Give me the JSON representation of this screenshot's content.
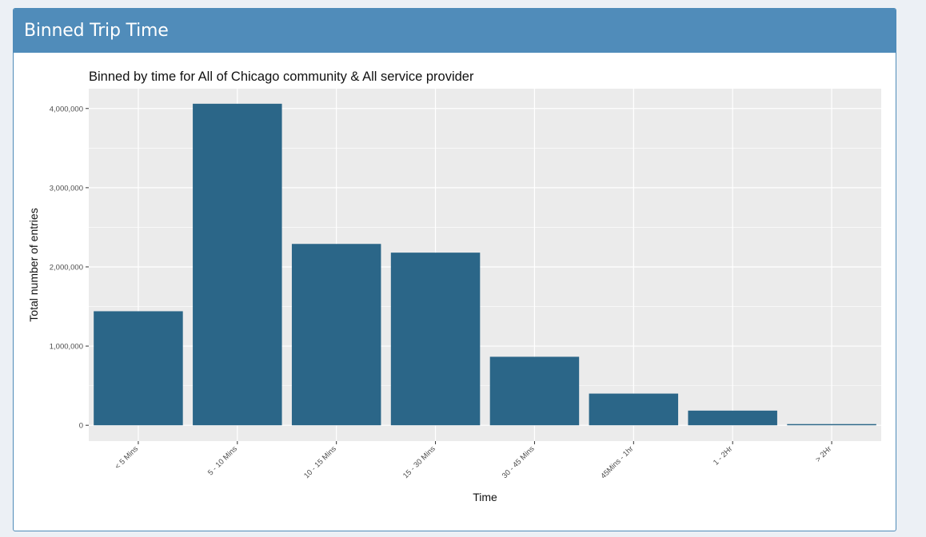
{
  "box": {
    "title": "Binned Trip Time"
  },
  "colors": {
    "header_bg": "#508cba",
    "bar_fill": "#2b6688",
    "panel_bg": "#ebebeb",
    "grid": "#ffffff",
    "page_bg": "#ecf0f5"
  },
  "chart_data": {
    "type": "bar",
    "title": "Binned by time for All of Chicago  community &  All  service provider",
    "xlabel": "Time",
    "ylabel": "Total number of entries",
    "categories": [
      "< 5 Mins",
      "5 - 10 Mins",
      "10 - 15 Mins",
      "15 - 30 Mins",
      "30 - 45 Mins",
      "45Mins - 1hr",
      "1 - 2Hr",
      "> 2Hr"
    ],
    "values": [
      1440000,
      4060000,
      2290000,
      2180000,
      865000,
      400000,
      185000,
      15000
    ],
    "ylim": [
      -200000,
      4250000
    ],
    "yticks": [
      0,
      1000000,
      2000000,
      3000000,
      4000000
    ],
    "ytick_labels": [
      "0",
      "1,000,000",
      "2,000,000",
      "3,000,000",
      "4,000,000"
    ],
    "grid": true,
    "legend": "none"
  }
}
